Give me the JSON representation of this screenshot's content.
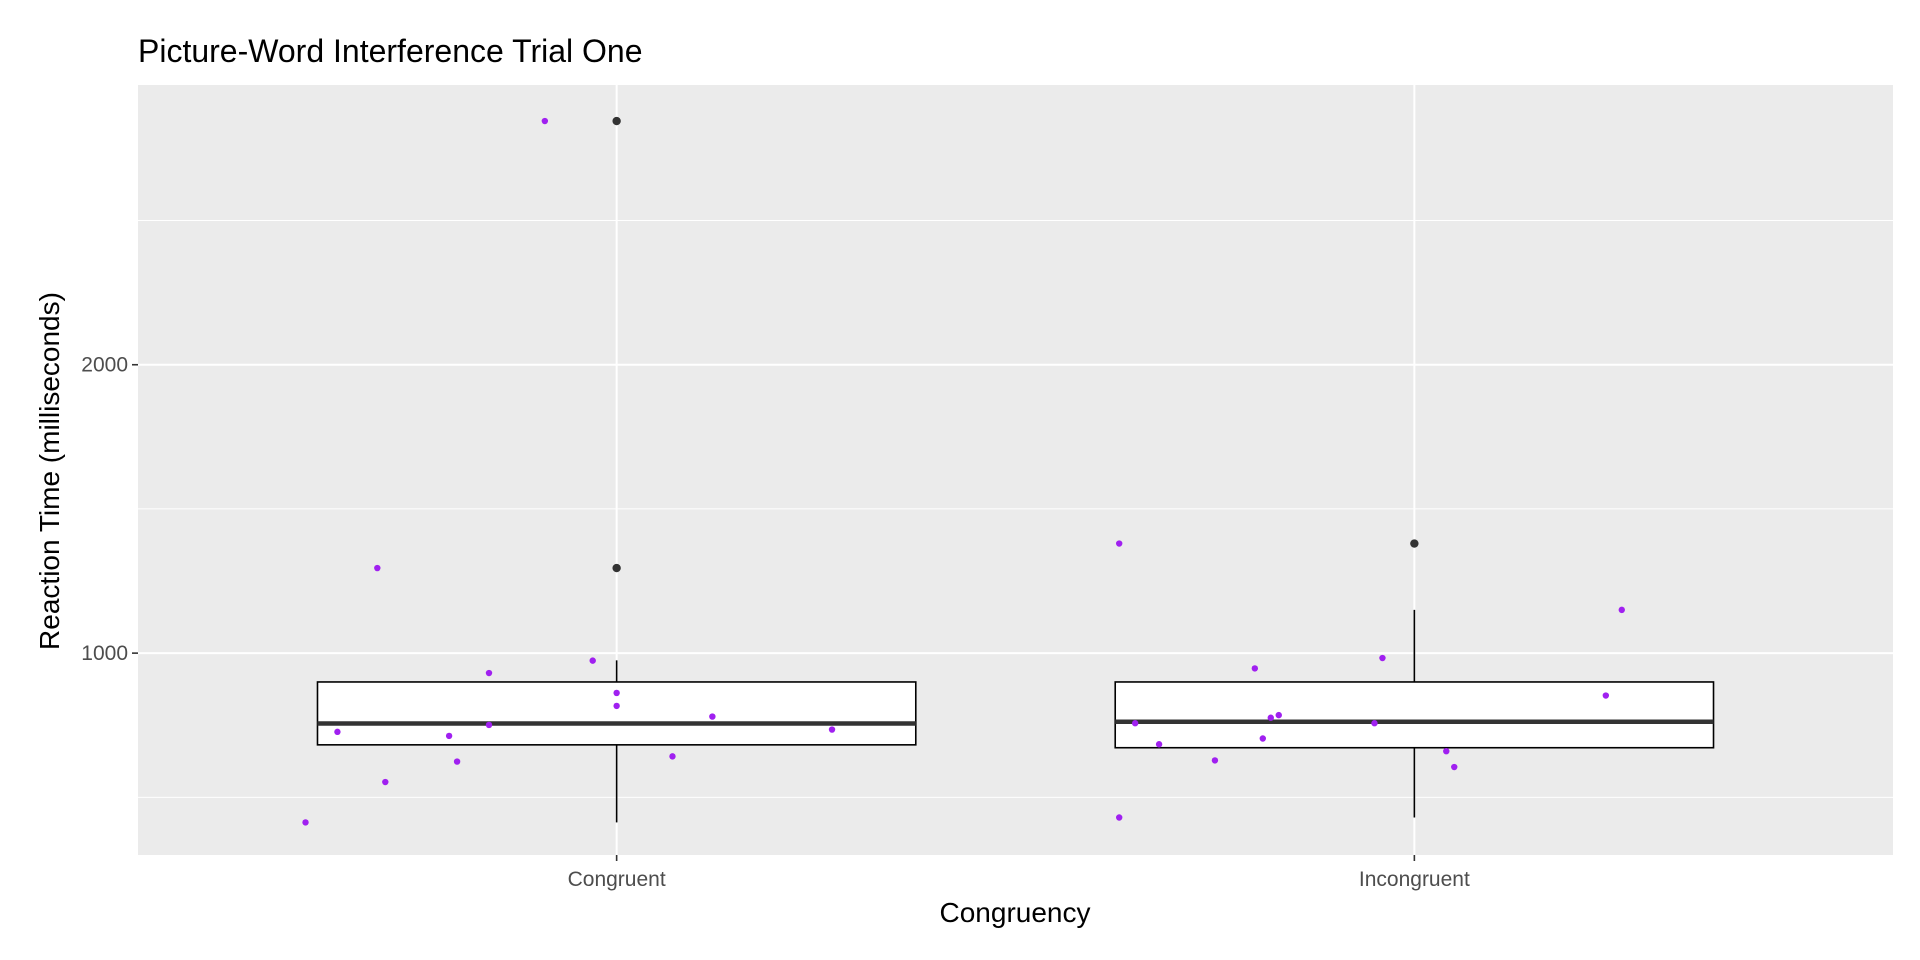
{
  "chart_data": {
    "type": "box",
    "title": "Picture-Word Interference Trial One",
    "xlabel": "Congruency",
    "ylabel": "Reaction Time (milliseconds)",
    "categories": [
      "Congruent",
      "Incongruent"
    ],
    "ylim": [
      300,
      2970
    ],
    "yticks": [
      1000,
      2000
    ],
    "grid": true,
    "colors": {
      "panel": "#EBEBEB",
      "grid": "#FFFFFF",
      "box_fill": "#FFFFFF",
      "box_line": "#000000",
      "median": "#333333",
      "outlier": "#333333",
      "jitter": "#A020F0",
      "tick_text": "#4D4D4D"
    },
    "boxes": [
      {
        "category": "Congruent",
        "q1": 682,
        "median": 756,
        "q3": 900,
        "whisker_low": 413,
        "whisker_high": 975,
        "outliers": [
          1295,
          2845
        ]
      },
      {
        "category": "Incongruent",
        "q1": 672,
        "median": 762,
        "q3": 900,
        "whisker_low": 430,
        "whisker_high": 1150,
        "outliers": [
          1380
        ]
      }
    ],
    "points": [
      {
        "category": "Congruent",
        "x": 0.61,
        "y": 413
      },
      {
        "category": "Congruent",
        "x": 0.65,
        "y": 727
      },
      {
        "category": "Congruent",
        "x": 0.7,
        "y": 1295
      },
      {
        "category": "Congruent",
        "x": 0.71,
        "y": 553
      },
      {
        "category": "Congruent",
        "x": 0.79,
        "y": 713
      },
      {
        "category": "Congruent",
        "x": 0.8,
        "y": 624
      },
      {
        "category": "Congruent",
        "x": 0.84,
        "y": 931
      },
      {
        "category": "Congruent",
        "x": 0.84,
        "y": 751
      },
      {
        "category": "Congruent",
        "x": 0.91,
        "y": 2845
      },
      {
        "category": "Congruent",
        "x": 0.97,
        "y": 974
      },
      {
        "category": "Congruent",
        "x": 1.0,
        "y": 862
      },
      {
        "category": "Congruent",
        "x": 1.0,
        "y": 817
      },
      {
        "category": "Congruent",
        "x": 1.07,
        "y": 642
      },
      {
        "category": "Congruent",
        "x": 1.12,
        "y": 780
      },
      {
        "category": "Congruent",
        "x": 1.27,
        "y": 735
      },
      {
        "category": "Incongruent",
        "x": 1.63,
        "y": 1380
      },
      {
        "category": "Incongruent",
        "x": 1.63,
        "y": 430
      },
      {
        "category": "Incongruent",
        "x": 1.65,
        "y": 757
      },
      {
        "category": "Incongruent",
        "x": 1.68,
        "y": 684
      },
      {
        "category": "Incongruent",
        "x": 1.75,
        "y": 628
      },
      {
        "category": "Incongruent",
        "x": 1.8,
        "y": 947
      },
      {
        "category": "Incongruent",
        "x": 1.81,
        "y": 704
      },
      {
        "category": "Incongruent",
        "x": 1.82,
        "y": 776
      },
      {
        "category": "Incongruent",
        "x": 1.83,
        "y": 785
      },
      {
        "category": "Incongruent",
        "x": 1.95,
        "y": 757
      },
      {
        "category": "Incongruent",
        "x": 1.96,
        "y": 983
      },
      {
        "category": "Incongruent",
        "x": 2.04,
        "y": 660
      },
      {
        "category": "Incongruent",
        "x": 2.05,
        "y": 605
      },
      {
        "category": "Incongruent",
        "x": 2.24,
        "y": 853
      },
      {
        "category": "Incongruent",
        "x": 2.26,
        "y": 1150
      }
    ]
  }
}
